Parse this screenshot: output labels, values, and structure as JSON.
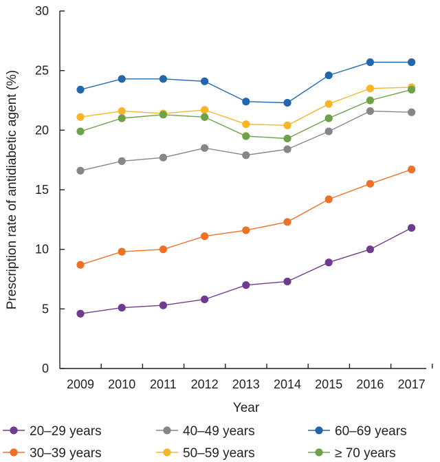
{
  "chart_data": {
    "type": "line",
    "title": "",
    "xlabel": "Year",
    "ylabel": "Prescription rate of antidiabetic agent (%)",
    "ylim": [
      0,
      30
    ],
    "yticks": [
      "0",
      "5",
      "10",
      "15",
      "20",
      "25",
      "30"
    ],
    "categories": [
      "2009",
      "2010",
      "2011",
      "2012",
      "2013",
      "2014",
      "2015",
      "2016",
      "2017"
    ],
    "grid": false,
    "legend_position": "bottom",
    "series": [
      {
        "name": "20–29 years",
        "color": "#6f3b8f",
        "values": [
          4.6,
          5.1,
          5.3,
          5.8,
          7.0,
          7.3,
          8.9,
          10.0,
          11.8
        ]
      },
      {
        "name": "30–39 years",
        "color": "#ee7128",
        "values": [
          8.7,
          9.8,
          10.0,
          11.1,
          11.6,
          12.3,
          14.2,
          15.5,
          16.7
        ]
      },
      {
        "name": "40–49 years",
        "color": "#868686",
        "values": [
          16.6,
          17.4,
          17.7,
          18.5,
          17.9,
          18.4,
          19.9,
          21.6,
          21.5
        ]
      },
      {
        "name": "50–59 years",
        "color": "#f8b528",
        "values": [
          21.1,
          21.6,
          21.4,
          21.7,
          20.5,
          20.4,
          22.2,
          23.5,
          23.6
        ]
      },
      {
        "name": "60–69 years",
        "color": "#2266ad",
        "values": [
          23.4,
          24.3,
          24.3,
          24.1,
          22.4,
          22.3,
          24.6,
          25.7,
          25.7
        ]
      },
      {
        "name": "≥ 70 years",
        "color": "#6da14a",
        "values": [
          19.9,
          21.0,
          21.3,
          21.1,
          19.5,
          19.3,
          21.0,
          22.5,
          23.4
        ]
      }
    ]
  }
}
